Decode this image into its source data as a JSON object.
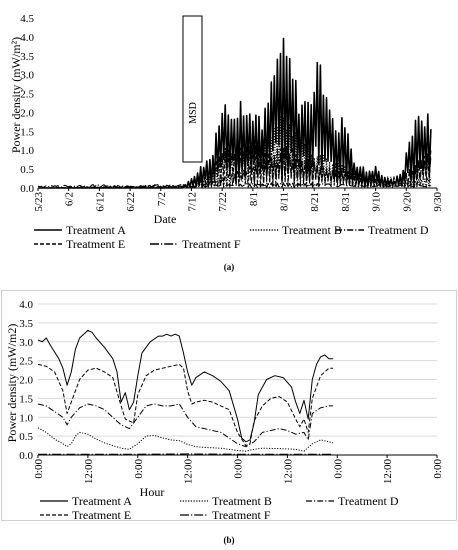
{
  "chart_data": [
    {
      "panel": "(a)",
      "type": "line",
      "title": "",
      "xlabel": "Date",
      "ylabel": "Power density (mW/m²)",
      "ylim": [
        0,
        4.5
      ],
      "yticks": [
        "0.0",
        "0.5",
        "1.0",
        "1.5",
        "2.0",
        "2.5",
        "3.0",
        "3.5",
        "4.0",
        "4.5"
      ],
      "xticks": [
        "5/23",
        "6/2",
        "6/12",
        "6/22",
        "7/2",
        "7/12",
        "7/22",
        "8/1",
        "8/11",
        "8/21",
        "8/31",
        "9/10",
        "9/20",
        "9/30"
      ],
      "annotation": "MSD",
      "grid": false,
      "legend": "bottom",
      "series": [
        {
          "name": "Treatment A",
          "dash": "solid",
          "width": 1.6,
          "knots": [
            [
              "5/23",
              0.0
            ],
            [
              "7/9",
              0.0
            ],
            [
              "7/12",
              0.3
            ],
            [
              "7/15",
              0.6
            ],
            [
              "7/19",
              1.0
            ],
            [
              "7/22",
              2.4
            ],
            [
              "7/26",
              2.4
            ],
            [
              "7/30",
              2.2
            ],
            [
              "8/1",
              2.3
            ],
            [
              "8/4",
              1.8
            ],
            [
              "8/7",
              3.0
            ],
            [
              "8/10",
              4.2
            ],
            [
              "8/13",
              3.7
            ],
            [
              "8/16",
              2.6
            ],
            [
              "8/19",
              2.5
            ],
            [
              "8/22",
              3.4
            ],
            [
              "8/25",
              3.0
            ],
            [
              "8/28",
              1.6
            ],
            [
              "8/31",
              2.1
            ],
            [
              "9/3",
              0.8
            ],
            [
              "9/7",
              0.5
            ],
            [
              "9/10",
              0.6
            ],
            [
              "9/13",
              0.3
            ],
            [
              "9/16",
              0.2
            ],
            [
              "9/19",
              0.6
            ],
            [
              "9/21",
              1.5
            ],
            [
              "9/25",
              2.2
            ],
            [
              "9/28",
              1.9
            ]
          ]
        },
        {
          "name": "Treatment B",
          "dash": "1.2,1.5",
          "width": 1.1,
          "knots": [
            [
              "5/23",
              0.0
            ],
            [
              "7/12",
              0.05
            ],
            [
              "7/19",
              0.4
            ],
            [
              "7/22",
              1.2
            ],
            [
              "7/28",
              1.0
            ],
            [
              "8/3",
              1.4
            ],
            [
              "8/10",
              2.0
            ],
            [
              "8/14",
              1.7
            ],
            [
              "8/19",
              1.1
            ],
            [
              "8/24",
              0.9
            ],
            [
              "8/31",
              0.6
            ],
            [
              "9/7",
              0.3
            ],
            [
              "9/16",
              0.1
            ],
            [
              "9/22",
              0.2
            ],
            [
              "9/28",
              0.3
            ]
          ]
        },
        {
          "name": "Treatment D",
          "dash": "6,2,1.2,2",
          "width": 1.0,
          "knots": [
            [
              "5/23",
              0.0
            ],
            [
              "7/12",
              0.05
            ],
            [
              "7/22",
              0.3
            ],
            [
              "8/1",
              0.6
            ],
            [
              "8/10",
              1.0
            ],
            [
              "8/21",
              0.7
            ],
            [
              "8/31",
              0.5
            ],
            [
              "9/10",
              0.3
            ],
            [
              "9/20",
              0.4
            ],
            [
              "9/28",
              1.0
            ]
          ]
        },
        {
          "name": "Treatment E",
          "dash": "4,2",
          "width": 1.1,
          "knots": [
            [
              "5/23",
              0.0
            ],
            [
              "7/12",
              0.1
            ],
            [
              "7/22",
              1.0
            ],
            [
              "8/1",
              1.3
            ],
            [
              "8/7",
              1.0
            ],
            [
              "8/12",
              1.2
            ],
            [
              "8/19",
              0.8
            ],
            [
              "8/25",
              0.6
            ],
            [
              "8/31",
              0.4
            ],
            [
              "9/7",
              0.3
            ],
            [
              "9/14",
              0.2
            ],
            [
              "9/21",
              0.5
            ],
            [
              "9/28",
              1.1
            ]
          ]
        },
        {
          "name": "Treatment F",
          "dash": "9,2,1.2,2",
          "width": 1.1,
          "knots": [
            [
              "5/23",
              0.05
            ],
            [
              "6/12",
              0.1
            ],
            [
              "6/22",
              0.05
            ],
            [
              "7/2",
              0.1
            ],
            [
              "7/12",
              0.05
            ],
            [
              "7/22",
              0.1
            ],
            [
              "8/11",
              0.15
            ],
            [
              "8/31",
              0.1
            ],
            [
              "9/20",
              0.1
            ],
            [
              "9/28",
              0.1
            ]
          ]
        }
      ]
    },
    {
      "panel": "(b)",
      "type": "line",
      "title": "",
      "xlabel": "Hour",
      "ylabel": "Power density (mW/m2)",
      "ylim": [
        0,
        4.0
      ],
      "yticks": [
        "0.0",
        "0.5",
        "1.0",
        "1.5",
        "2.0",
        "2.5",
        "3.0",
        "3.5",
        "4.0"
      ],
      "xlim_hours": [
        0,
        96
      ],
      "xticks": [
        "0:00",
        "12:00",
        "0:00",
        "12:00",
        "0:00",
        "12:00",
        "0:00",
        "12:00",
        "0:00"
      ],
      "grid": true,
      "legend": "bottom",
      "series": [
        {
          "name": "Treatment A",
          "dash": "solid",
          "width": 1.0,
          "points": [
            [
              0,
              3.05
            ],
            [
              1,
              3.0
            ],
            [
              2,
              3.1
            ],
            [
              3,
              2.9
            ],
            [
              5,
              2.55
            ],
            [
              6,
              2.3
            ],
            [
              7,
              1.85
            ],
            [
              8,
              2.2
            ],
            [
              9,
              2.8
            ],
            [
              10,
              3.1
            ],
            [
              11,
              3.2
            ],
            [
              12,
              3.3
            ],
            [
              13,
              3.25
            ],
            [
              14,
              3.1
            ],
            [
              16,
              2.85
            ],
            [
              18,
              2.55
            ],
            [
              19,
              2.2
            ],
            [
              20,
              1.4
            ],
            [
              21,
              1.65
            ],
            [
              22,
              1.2
            ],
            [
              23,
              1.4
            ],
            [
              24,
              2.1
            ],
            [
              25,
              2.7
            ],
            [
              27,
              3.0
            ],
            [
              29,
              3.15
            ],
            [
              30,
              3.15
            ],
            [
              31,
              3.2
            ],
            [
              32,
              3.15
            ],
            [
              33,
              3.2
            ],
            [
              34,
              3.15
            ],
            [
              35,
              2.7
            ],
            [
              36,
              2.2
            ],
            [
              37,
              1.85
            ],
            [
              38,
              2.05
            ],
            [
              40,
              2.2
            ],
            [
              42,
              2.1
            ],
            [
              44,
              1.95
            ],
            [
              46,
              1.7
            ],
            [
              48,
              0.95
            ],
            [
              49,
              0.45
            ],
            [
              50,
              0.35
            ],
            [
              51,
              0.4
            ],
            [
              52,
              0.85
            ],
            [
              53,
              1.6
            ],
            [
              55,
              2.0
            ],
            [
              57,
              2.1
            ],
            [
              59,
              2.05
            ],
            [
              61,
              1.8
            ],
            [
              62,
              1.4
            ],
            [
              63,
              1.1
            ],
            [
              64,
              1.45
            ],
            [
              65,
              0.95
            ],
            [
              66,
              2.0
            ],
            [
              67,
              2.4
            ],
            [
              68,
              2.6
            ],
            [
              69,
              2.65
            ],
            [
              70,
              2.55
            ],
            [
              71,
              2.55
            ]
          ]
        },
        {
          "name": "Treatment B",
          "dash": "1.2,1.5",
          "width": 1.0,
          "points": [
            [
              0,
              0.72
            ],
            [
              2,
              0.6
            ],
            [
              4,
              0.42
            ],
            [
              6,
              0.3
            ],
            [
              7,
              0.22
            ],
            [
              8,
              0.3
            ],
            [
              9,
              0.5
            ],
            [
              10,
              0.6
            ],
            [
              12,
              0.55
            ],
            [
              14,
              0.42
            ],
            [
              16,
              0.32
            ],
            [
              18,
              0.25
            ],
            [
              20,
              0.18
            ],
            [
              22,
              0.15
            ],
            [
              24,
              0.3
            ],
            [
              26,
              0.5
            ],
            [
              28,
              0.52
            ],
            [
              30,
              0.45
            ],
            [
              32,
              0.4
            ],
            [
              34,
              0.38
            ],
            [
              36,
              0.28
            ],
            [
              38,
              0.22
            ],
            [
              40,
              0.2
            ],
            [
              44,
              0.18
            ],
            [
              48,
              0.12
            ],
            [
              50,
              0.1
            ],
            [
              52,
              0.15
            ],
            [
              54,
              0.18
            ],
            [
              58,
              0.17
            ],
            [
              62,
              0.15
            ],
            [
              64,
              0.1
            ],
            [
              66,
              0.3
            ],
            [
              68,
              0.4
            ],
            [
              70,
              0.35
            ],
            [
              71,
              0.32
            ]
          ]
        },
        {
          "name": "Treatment D",
          "dash": "6,2,1.2,2",
          "width": 1.0,
          "points": [
            [
              0,
              1.35
            ],
            [
              2,
              1.3
            ],
            [
              4,
              1.15
            ],
            [
              6,
              1.0
            ],
            [
              7,
              0.8
            ],
            [
              8,
              1.0
            ],
            [
              10,
              1.25
            ],
            [
              12,
              1.35
            ],
            [
              14,
              1.3
            ],
            [
              16,
              1.2
            ],
            [
              18,
              1.0
            ],
            [
              20,
              0.8
            ],
            [
              22,
              0.7
            ],
            [
              24,
              1.0
            ],
            [
              26,
              1.3
            ],
            [
              28,
              1.35
            ],
            [
              30,
              1.3
            ],
            [
              32,
              1.3
            ],
            [
              34,
              1.35
            ],
            [
              36,
              1.0
            ],
            [
              38,
              0.75
            ],
            [
              40,
              0.7
            ],
            [
              44,
              0.6
            ],
            [
              48,
              0.3
            ],
            [
              50,
              0.22
            ],
            [
              52,
              0.35
            ],
            [
              54,
              0.6
            ],
            [
              56,
              0.65
            ],
            [
              58,
              0.7
            ],
            [
              60,
              0.65
            ],
            [
              62,
              0.55
            ],
            [
              64,
              0.6
            ],
            [
              65,
              0.4
            ],
            [
              66,
              1.1
            ],
            [
              68,
              1.25
            ],
            [
              70,
              1.3
            ],
            [
              71,
              1.3
            ]
          ]
        },
        {
          "name": "Treatment E",
          "dash": "4,2",
          "width": 1.0,
          "points": [
            [
              0,
              2.4
            ],
            [
              2,
              2.35
            ],
            [
              4,
              2.2
            ],
            [
              6,
              1.7
            ],
            [
              7,
              1.1
            ],
            [
              8,
              1.4
            ],
            [
              10,
              2.0
            ],
            [
              12,
              2.25
            ],
            [
              14,
              2.3
            ],
            [
              16,
              2.2
            ],
            [
              18,
              2.05
            ],
            [
              20,
              1.3
            ],
            [
              21,
              0.95
            ],
            [
              22,
              0.9
            ],
            [
              23,
              0.85
            ],
            [
              24,
              1.6
            ],
            [
              26,
              2.1
            ],
            [
              28,
              2.25
            ],
            [
              30,
              2.3
            ],
            [
              32,
              2.35
            ],
            [
              34,
              2.4
            ],
            [
              35,
              2.3
            ],
            [
              36,
              1.7
            ],
            [
              37,
              1.35
            ],
            [
              38,
              1.4
            ],
            [
              40,
              1.45
            ],
            [
              42,
              1.4
            ],
            [
              44,
              1.3
            ],
            [
              46,
              1.2
            ],
            [
              48,
              0.6
            ],
            [
              50,
              0.25
            ],
            [
              51,
              0.3
            ],
            [
              52,
              0.9
            ],
            [
              54,
              1.3
            ],
            [
              56,
              1.5
            ],
            [
              58,
              1.55
            ],
            [
              60,
              1.4
            ],
            [
              62,
              0.95
            ],
            [
              63,
              0.75
            ],
            [
              64,
              0.95
            ],
            [
              65,
              0.6
            ],
            [
              66,
              1.5
            ],
            [
              68,
              2.1
            ],
            [
              70,
              2.3
            ],
            [
              71,
              2.3
            ]
          ]
        },
        {
          "name": "Treatment F",
          "dash": "9,2,1.2,2",
          "width": 1.0,
          "points": [
            [
              0,
              0.02
            ],
            [
              12,
              0.02
            ],
            [
              24,
              0.02
            ],
            [
              36,
              0.03
            ],
            [
              48,
              0.02
            ],
            [
              60,
              0.02
            ],
            [
              71,
              0.02
            ]
          ]
        }
      ]
    }
  ],
  "captions": [
    "(a)",
    "(b)"
  ]
}
